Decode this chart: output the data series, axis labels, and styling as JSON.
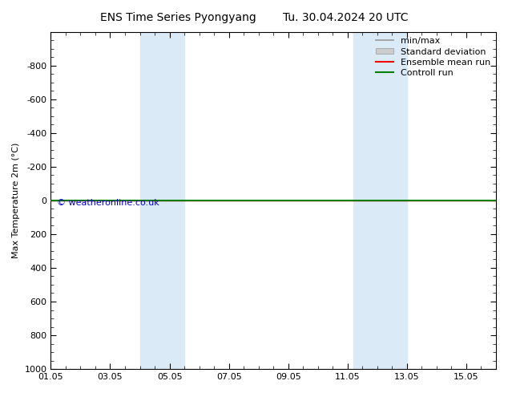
{
  "title": "ENS Time Series Pyongyang",
  "title2": "Tu. 30.04.2024 20 UTC",
  "ylabel": "Max Temperature 2m (°C)",
  "ylim_top": -1000,
  "ylim_bottom": 1000,
  "yticks": [
    -800,
    -600,
    -400,
    -200,
    0,
    200,
    400,
    600,
    800,
    1000
  ],
  "xtick_labels": [
    "01.05",
    "03.05",
    "05.05",
    "07.05",
    "09.05",
    "11.05",
    "13.05",
    "15.05"
  ],
  "xtick_positions": [
    1,
    3,
    5,
    7,
    9,
    11,
    13,
    15
  ],
  "xlim": [
    1,
    16
  ],
  "shade_regions": [
    {
      "xstart": 4.0,
      "xend": 5.5
    },
    {
      "xstart": 11.2,
      "xend": 13.0
    }
  ],
  "shade_color": "#daeaf7",
  "green_line_y": 0,
  "red_line_y": 0,
  "green_color": "#008000",
  "red_color": "#ff0000",
  "copyright_text": "© weatheronline.co.uk",
  "copyright_color": "#0000cc",
  "legend_items": [
    "min/max",
    "Standard deviation",
    "Ensemble mean run",
    "Controll run"
  ],
  "legend_line_color": "#999999",
  "legend_fill_color": "#cccccc",
  "legend_red_color": "#ff0000",
  "legend_green_color": "#008000",
  "bg_color": "#ffffff",
  "title_fontsize": 10,
  "axis_fontsize": 8,
  "legend_fontsize": 8
}
